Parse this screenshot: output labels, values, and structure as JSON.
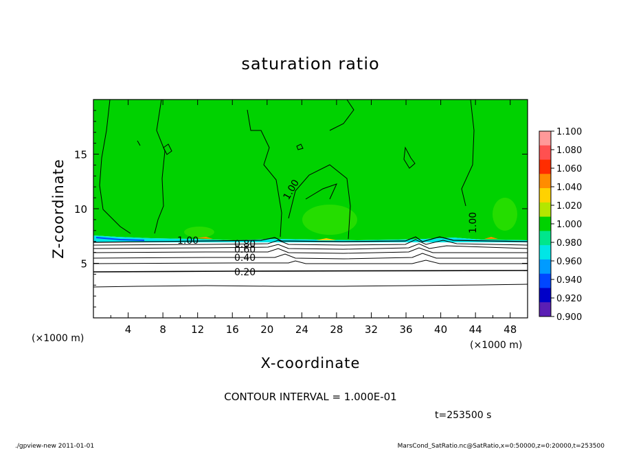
{
  "chart_data": {
    "type": "heatmap",
    "title": "saturation ratio",
    "xlabel": "X-coordinate",
    "ylabel": "Z-coordinate",
    "x_unit_left": "(×1000 m)",
    "x_unit_right": "(×1000 m)",
    "xlim": [
      0,
      50
    ],
    "ylim": [
      0,
      20
    ],
    "x_ticks": [
      "4",
      "8",
      "12",
      "16",
      "20",
      "24",
      "28",
      "32",
      "36",
      "40",
      "44",
      "48"
    ],
    "y_ticks": [
      "5",
      "10",
      "15"
    ],
    "colorbar": {
      "ticks": [
        "1.100",
        "1.080",
        "1.060",
        "1.040",
        "1.020",
        "1.000",
        "0.980",
        "0.960",
        "0.940",
        "0.920",
        "0.900"
      ],
      "colors": [
        "#ff9999",
        "#ff5050",
        "#ff2d00",
        "#ff8c00",
        "#ffd200",
        "#b4e600",
        "#00d200",
        "#00e68c",
        "#00e6e6",
        "#009bff",
        "#0046ff",
        "#0000c8",
        "#5a1eb4"
      ]
    },
    "contour_labels": [
      "1.00",
      "1.00",
      "1.00",
      "0.80",
      "0.60",
      "0.40",
      "0.20"
    ],
    "contour_interval": "CONTOUR INTERVAL = 1.000E-01",
    "time": "t=253500 s"
  },
  "footer": {
    "left": "./gpview-new   2011-01-01",
    "right": "MarsCond_SatRatio.nc@SatRatio,x=0:50000,z=0:20000,t=253500"
  },
  "colors": {
    "green_field": "#00d200",
    "light_green": "#2ee000",
    "cyan_band": "#00e6e6"
  }
}
